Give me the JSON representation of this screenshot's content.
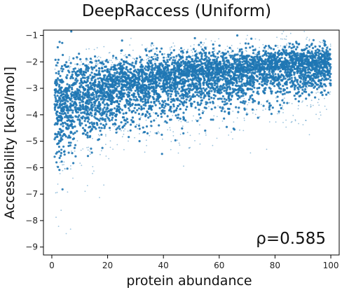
{
  "chart_data": {
    "type": "scatter",
    "title": "DeepRaccess (Uniform)",
    "xlabel": "protein abundance",
    "ylabel": "Accessibility  [kcal/mol]",
    "xlim": [
      -3,
      103
    ],
    "ylim": [
      -9.3,
      -0.8
    ],
    "xticks": [
      0,
      20,
      40,
      60,
      80,
      100
    ],
    "yticks": [
      -1,
      -2,
      -3,
      -4,
      -5,
      -6,
      -7,
      -8,
      -9
    ],
    "grid": false,
    "point_color": "#1f77b4",
    "annotation": "ρ=0.585",
    "correlation": 0.585,
    "trend": {
      "x": [
        1,
        5,
        10,
        20,
        30,
        40,
        50,
        60,
        70,
        80,
        90,
        100
      ],
      "mean": [
        -3.9,
        -3.6,
        -3.35,
        -3.05,
        -2.85,
        -2.7,
        -2.55,
        -2.45,
        -2.35,
        -2.25,
        -2.15,
        -2.05
      ],
      "dense_upper": [
        -2.4,
        -2.3,
        -2.25,
        -2.15,
        -2.05,
        -1.95,
        -1.85,
        -1.8,
        -1.75,
        -1.7,
        -1.6,
        -1.55
      ],
      "dense_lower": [
        -5.7,
        -5.2,
        -4.6,
        -4.2,
        -4.0,
        -3.8,
        -3.65,
        -3.5,
        -3.35,
        -3.2,
        -3.0,
        -2.8
      ]
    }
  }
}
